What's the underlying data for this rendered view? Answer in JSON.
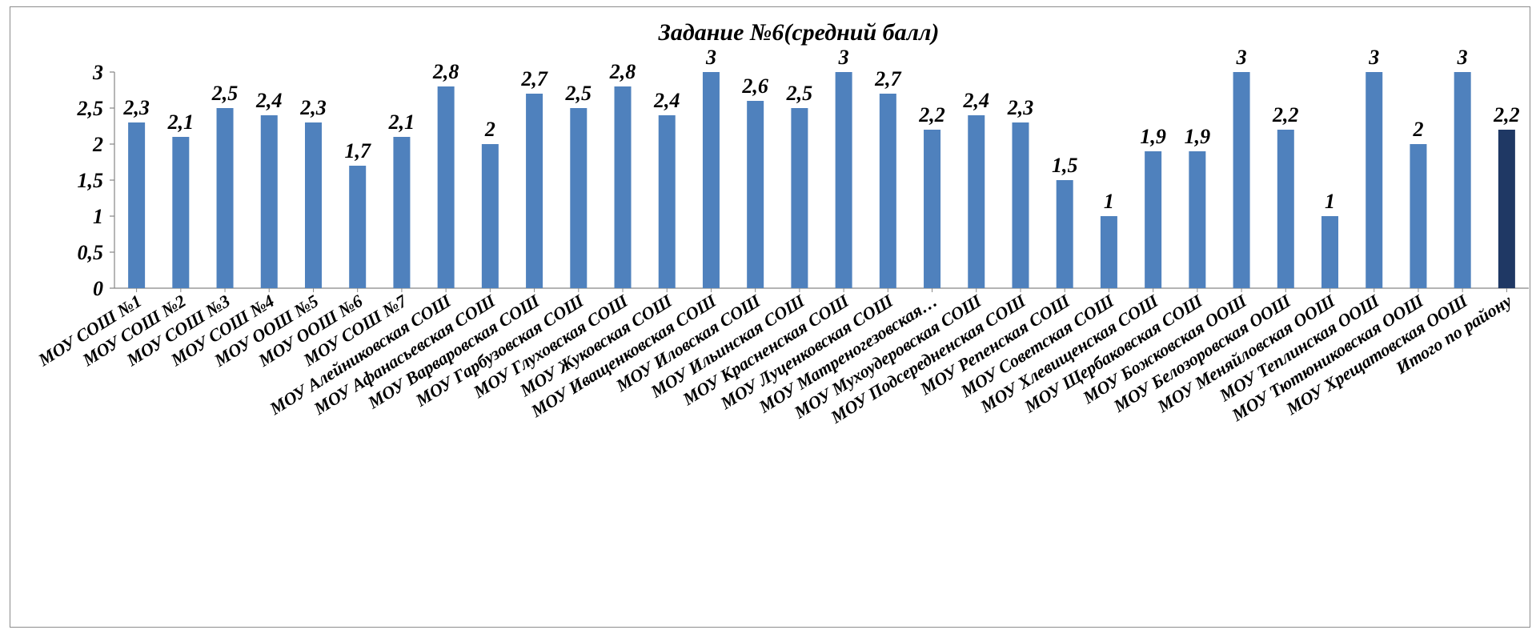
{
  "chart_data": {
    "type": "bar",
    "title": "Задание №6(средний балл)",
    "xlabel": "",
    "ylabel": "",
    "ylim": [
      0,
      3
    ],
    "yticks": [
      "0",
      "0,5",
      "1",
      "1,5",
      "2",
      "2,5",
      "3"
    ],
    "grid": false,
    "legend": "none",
    "bar_color": "#4f81bd",
    "highlight_color": "#1f3864",
    "categories": [
      "МОУ СОШ №1",
      "МОУ СОШ №2",
      "МОУ СОШ №3",
      "МОУ СОШ №4",
      "МОУ ООШ №5",
      "МОУ ООШ №6",
      "МОУ СОШ №7",
      "МОУ Алейниковская СОШ",
      "МОУ Афанасьевская СОШ",
      "МОУ Варваровская  СОШ",
      "МОУ Гарбузовская  СОШ",
      "МОУ Глуховская  СОШ",
      "МОУ Жуковская  СОШ",
      "МОУ Иващенковская  СОШ",
      "МОУ Иловская  СОШ",
      "МОУ Ильинская  СОШ",
      "МОУ Красненская  СОШ",
      "МОУ Луценковская СОШ",
      "МОУ Матреногезовская…",
      "МОУ Мухоудеровская  СОШ",
      "МОУ Подсередненская  СОШ",
      "МОУ Репенская  СОШ",
      "МОУ Советская  СОШ",
      "МОУ Хлевищенская  СОШ",
      "МОУ Щербаковская СОШ",
      "МОУ Божковская  ООШ",
      "МОУ Белозоровская ООШ",
      "МОУ Меняйловская ООШ",
      "МОУ Теплинская ООШ",
      "МОУ Тютюниковская ООШ",
      "МОУ Хрещатовская ООШ",
      "Итого по району"
    ],
    "values": [
      2.3,
      2.1,
      2.5,
      2.4,
      2.3,
      1.7,
      2.1,
      2.8,
      2.0,
      2.7,
      2.5,
      2.8,
      2.4,
      3.0,
      2.6,
      2.5,
      3.0,
      2.7,
      2.2,
      2.4,
      2.3,
      1.5,
      1.0,
      1.9,
      1.9,
      3.0,
      2.2,
      1.0,
      3.0,
      2.0,
      3.0,
      2.2
    ],
    "data_labels": [
      "2,3",
      "2,1",
      "2,5",
      "2,4",
      "2,3",
      "1,7",
      "2,1",
      "2,8",
      "2",
      "2,7",
      "2,5",
      "2,8",
      "2,4",
      "3",
      "2,6",
      "2,5",
      "3",
      "2,7",
      "2,2",
      "2,4",
      "2,3",
      "1,5",
      "1",
      "1,9",
      "1,9",
      "3",
      "2,2",
      "1",
      "3",
      "2",
      "3",
      "2,2"
    ],
    "highlight_index": 31
  }
}
